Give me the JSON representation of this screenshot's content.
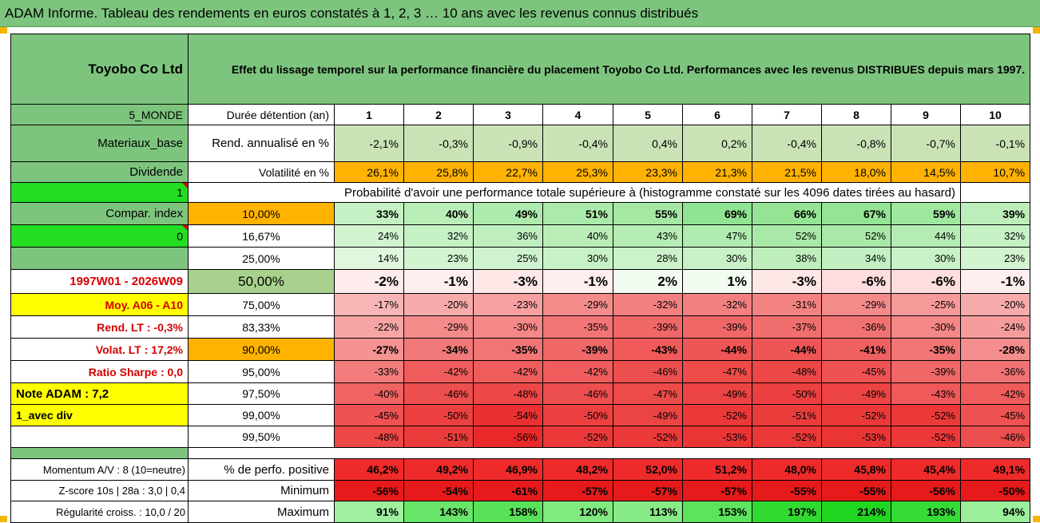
{
  "title": "ADAM Informe. Tableau des rendements en euros constatés à 1, 2, 3 … 10 ans avec les revenus connus distribués",
  "header": {
    "company": "Toyobo Co Ltd",
    "description": "Effet du lissage temporel sur la performance financière du placement Toyobo Co Ltd. Performances avec les revenus DISTRIBUES depuis mars 1997."
  },
  "left": {
    "zone": "5_MONDE",
    "sector": "Materiaux_base",
    "dividend_label": "Dividende",
    "dividend_value": "1",
    "compar_label": "Compar. index",
    "compar_value": "0",
    "period": "1997W01 - 2026W09",
    "moy": "Moy. A06 - A10",
    "rend_lt": "Rend. LT :   -0,3%",
    "volat_lt": "Volat. LT :   17,2%",
    "sharpe": "Ratio Sharpe :    0,0",
    "note": "Note ADAM : 7,2",
    "avec_div": "1_avec div",
    "momentum": "Momentum A/V : 8 (10=neutre)",
    "zscore": "Z-score 10s | 28a : 3,0 | 0,4",
    "regularite": "Régularité croiss. : 10,0 / 20"
  },
  "years_label": "Durée détention (an)",
  "years": [
    "1",
    "2",
    "3",
    "4",
    "5",
    "6",
    "7",
    "8",
    "9",
    "10"
  ],
  "rend": {
    "label": "Rend. annualisé en %",
    "values": [
      "-2,1%",
      "-0,3%",
      "-0,9%",
      "-0,4%",
      "0,4%",
      "0,2%",
      "-0,4%",
      "-0,8%",
      "-0,7%",
      "-0,1%"
    ]
  },
  "vol": {
    "label": "Volatilité en %",
    "values": [
      "26,1%",
      "25,8%",
      "22,7%",
      "25,3%",
      "23,3%",
      "21,3%",
      "21,5%",
      "18,0%",
      "14,5%",
      "10,7%"
    ]
  },
  "prob_title": "Probabilité d'avoir une performance totale supérieure à (histogramme constaté sur les 4096 dates tirées au hasard)",
  "prob_rows": [
    {
      "label": "10,00%",
      "values": [
        "33%",
        "40%",
        "49%",
        "51%",
        "55%",
        "69%",
        "66%",
        "67%",
        "59%",
        "39%"
      ]
    },
    {
      "label": "16,67%",
      "values": [
        "24%",
        "32%",
        "36%",
        "40%",
        "43%",
        "47%",
        "52%",
        "52%",
        "44%",
        "32%"
      ]
    },
    {
      "label": "25,00%",
      "values": [
        "14%",
        "23%",
        "25%",
        "30%",
        "28%",
        "30%",
        "38%",
        "34%",
        "30%",
        "23%"
      ]
    },
    {
      "label": "50,00%",
      "values": [
        "-2%",
        "-1%",
        "-3%",
        "-1%",
        "2%",
        "1%",
        "-3%",
        "-6%",
        "-6%",
        "-1%"
      ]
    },
    {
      "label": "75,00%",
      "values": [
        "-17%",
        "-20%",
        "-23%",
        "-29%",
        "-32%",
        "-32%",
        "-31%",
        "-29%",
        "-25%",
        "-20%"
      ]
    },
    {
      "label": "83,33%",
      "values": [
        "-22%",
        "-29%",
        "-30%",
        "-35%",
        "-39%",
        "-39%",
        "-37%",
        "-36%",
        "-30%",
        "-24%"
      ]
    },
    {
      "label": "90,00%",
      "values": [
        "-27%",
        "-34%",
        "-35%",
        "-39%",
        "-43%",
        "-44%",
        "-44%",
        "-41%",
        "-35%",
        "-28%"
      ]
    },
    {
      "label": "95,00%",
      "values": [
        "-33%",
        "-42%",
        "-42%",
        "-42%",
        "-46%",
        "-47%",
        "-48%",
        "-45%",
        "-39%",
        "-36%"
      ]
    },
    {
      "label": "97,50%",
      "values": [
        "-40%",
        "-46%",
        "-48%",
        "-46%",
        "-47%",
        "-49%",
        "-50%",
        "-49%",
        "-43%",
        "-42%"
      ]
    },
    {
      "label": "99,00%",
      "values": [
        "-45%",
        "-50%",
        "-54%",
        "-50%",
        "-49%",
        "-52%",
        "-51%",
        "-52%",
        "-52%",
        "-45%"
      ]
    },
    {
      "label": "99,50%",
      "values": [
        "-48%",
        "-51%",
        "-56%",
        "-52%",
        "-52%",
        "-53%",
        "-52%",
        "-53%",
        "-52%",
        "-46%"
      ]
    }
  ],
  "pos": {
    "label": "% de perfo. positive",
    "values": [
      "46,2%",
      "49,2%",
      "46,9%",
      "48,2%",
      "52,0%",
      "51,2%",
      "48,0%",
      "45,8%",
      "45,4%",
      "49,1%"
    ]
  },
  "min": {
    "label": "Minimum",
    "values": [
      "-56%",
      "-54%",
      "-61%",
      "-57%",
      "-57%",
      "-57%",
      "-55%",
      "-55%",
      "-56%",
      "-50%"
    ]
  },
  "max": {
    "label": "Maximum",
    "values": [
      "91%",
      "143%",
      "158%",
      "120%",
      "113%",
      "153%",
      "197%",
      "214%",
      "193%",
      "94%"
    ]
  },
  "colors": {
    "header_green": "#7dc57e",
    "lime": "#22dd22",
    "yellow": "#ffff00",
    "orange": "#ffb300",
    "red_text": "#d40000"
  }
}
